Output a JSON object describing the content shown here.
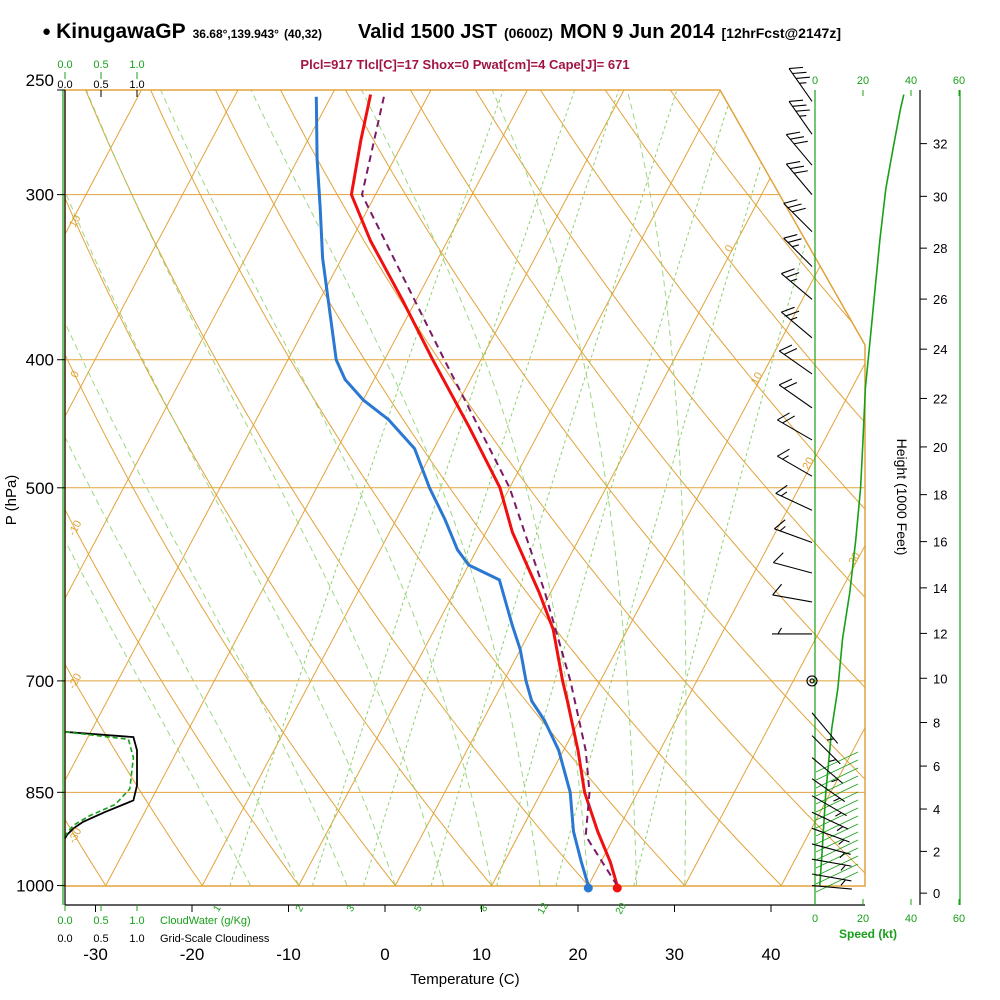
{
  "header": {
    "bullet": "●",
    "station": "KinugawaGP",
    "coords": "36.68°,139.943°",
    "grid_point": "(40,32)",
    "valid_label": "Valid 1500 JST",
    "valid_zulu": "(0600Z)",
    "valid_date": "MON 9 Jun 2014",
    "fcst_tag": "[12hrFcst@2147z]",
    "params_line": "Plcl=917 Tlcl[C]=17 Shox=0 Pwat[cm]=4 Cape[J]= 671",
    "params": {
      "plcl_hpa": 917,
      "tlcl_c": 17,
      "shox": 0,
      "pwat_cm": 4,
      "cape_j": 671
    }
  },
  "colors": {
    "orange": "#e2a33b",
    "green": "#18a018",
    "green_light": "#8ed06e",
    "red": "#f01010",
    "blue": "#2b78d2",
    "purple": "#7a1a66",
    "maroon": "#a01545",
    "black": "#000000"
  },
  "chart_data": {
    "type": "skewt_sounding",
    "axes": {
      "pressure": {
        "label": "P (hPa)",
        "ticks": [
          250,
          300,
          400,
          500,
          700,
          850,
          1000
        ]
      },
      "temperature": {
        "label": "Temperature (C)",
        "ticks": [
          -30,
          -20,
          -10,
          0,
          10,
          20,
          30,
          40
        ]
      },
      "height": {
        "label": "Height (1000 Feet)",
        "ticks": [
          0,
          2,
          4,
          6,
          8,
          10,
          12,
          14,
          16,
          18,
          20,
          22,
          24,
          26,
          28,
          30,
          32
        ]
      },
      "speed": {
        "label": "Speed (kt)",
        "ticks": [
          0,
          20,
          40,
          60
        ]
      },
      "cloudwater": {
        "label": "CloudWater (g/Kg)",
        "ticks": [
          "0.0",
          "0.5",
          "1.0"
        ]
      },
      "cloudiness": {
        "label": "Grid-Scale Cloudiness",
        "ticks": [
          "0.0",
          "0.5",
          "1.0"
        ]
      }
    },
    "isotherm_labels": [
      0,
      10,
      20,
      30
    ],
    "dry_adiabat_labels": [
      10,
      0,
      -10,
      -20,
      -30
    ],
    "mixing_ratio_lines_gkg": [
      1,
      2,
      3,
      5,
      8,
      12,
      20
    ],
    "moist_adiabats_c": [
      -15,
      -10,
      -5,
      0,
      5,
      10,
      15,
      20,
      25,
      30
    ],
    "series": {
      "temperature": [
        [
          1000,
          23
        ],
        [
          960,
          21
        ],
        [
          910,
          18
        ],
        [
          850,
          14.5
        ],
        [
          790,
          11.5
        ],
        [
          725,
          7.7
        ],
        [
          700,
          6.1
        ],
        [
          640,
          2.3
        ],
        [
          600,
          -1.2
        ],
        [
          540,
          -7.3
        ],
        [
          500,
          -11
        ],
        [
          450,
          -17.5
        ],
        [
          400,
          -25
        ],
        [
          360,
          -31.5
        ],
        [
          325,
          -38
        ],
        [
          300,
          -42.5
        ],
        [
          273,
          -44.5
        ],
        [
          252,
          -46
        ]
      ],
      "dewpoint": [
        [
          1000,
          20
        ],
        [
          960,
          18
        ],
        [
          910,
          15.5
        ],
        [
          850,
          13
        ],
        [
          790,
          9.5
        ],
        [
          750,
          6.4
        ],
        [
          725,
          4
        ],
        [
          700,
          2.3
        ],
        [
          663,
          0
        ],
        [
          635,
          -2.2
        ],
        [
          608,
          -4.3
        ],
        [
          587,
          -6
        ],
        [
          572,
          -10
        ],
        [
          557,
          -12
        ],
        [
          528,
          -15
        ],
        [
          500,
          -18.3
        ],
        [
          467,
          -22
        ],
        [
          444,
          -26.3
        ],
        [
          429,
          -30
        ],
        [
          414,
          -33
        ],
        [
          400,
          -35
        ],
        [
          367,
          -38.4
        ],
        [
          335,
          -42
        ],
        [
          307,
          -45
        ],
        [
          282,
          -48
        ],
        [
          253,
          -51.5
        ]
      ],
      "parcel": [
        [
          1000,
          23
        ],
        [
          917,
          17
        ],
        [
          850,
          15
        ],
        [
          790,
          12.3
        ],
        [
          700,
          6.9
        ],
        [
          600,
          -0.6
        ],
        [
          500,
          -10
        ],
        [
          400,
          -23.8
        ],
        [
          300,
          -41.4
        ],
        [
          253,
          -44.5
        ]
      ],
      "wind_speed_kt": [
        [
          1000,
          2
        ],
        [
          940,
          3
        ],
        [
          850,
          4.5
        ],
        [
          760,
          7
        ],
        [
          710,
          9.5
        ],
        [
          650,
          11.5
        ],
        [
          600,
          14.5
        ],
        [
          547,
          17
        ],
        [
          500,
          19
        ],
        [
          460,
          20
        ],
        [
          420,
          21
        ],
        [
          386,
          23
        ],
        [
          354,
          25
        ],
        [
          325,
          27
        ],
        [
          297,
          29.5
        ],
        [
          277,
          32.5
        ],
        [
          259,
          35.5
        ],
        [
          252,
          37
        ]
      ],
      "wind_barbs": [
        [
          255,
          325,
          35
        ],
        [
          270,
          325,
          35
        ],
        [
          285,
          320,
          30
        ],
        [
          300,
          320,
          30
        ],
        [
          320,
          315,
          30
        ],
        [
          340,
          315,
          25
        ],
        [
          360,
          310,
          25
        ],
        [
          385,
          310,
          25
        ],
        [
          410,
          305,
          20
        ],
        [
          435,
          305,
          20
        ],
        [
          460,
          300,
          20
        ],
        [
          490,
          300,
          15
        ],
        [
          520,
          295,
          15
        ],
        [
          550,
          290,
          15
        ],
        [
          580,
          285,
          10
        ],
        [
          610,
          280,
          10
        ],
        [
          645,
          270,
          5
        ],
        [
          700,
          0,
          0
        ],
        [
          740,
          140,
          5
        ],
        [
          770,
          135,
          8
        ],
        [
          800,
          130,
          8
        ],
        [
          830,
          125,
          8
        ],
        [
          855,
          120,
          7
        ],
        [
          880,
          115,
          6
        ],
        [
          905,
          110,
          5
        ],
        [
          930,
          105,
          5
        ],
        [
          955,
          100,
          4
        ],
        [
          980,
          100,
          3
        ],
        [
          1000,
          95,
          2
        ]
      ],
      "cloudiness_profile": [
        [
          765,
          0
        ],
        [
          772,
          0.95
        ],
        [
          790,
          1
        ],
        [
          840,
          1
        ],
        [
          862,
          0.95
        ],
        [
          880,
          0.55
        ],
        [
          895,
          0.25
        ],
        [
          905,
          0.12
        ],
        [
          915,
          0.03
        ],
        [
          921,
          0
        ]
      ],
      "cloudwater_profile": [
        [
          765,
          0
        ],
        [
          775,
          0.88
        ],
        [
          800,
          0.95
        ],
        [
          845,
          0.9
        ],
        [
          868,
          0.7
        ],
        [
          885,
          0.35
        ],
        [
          900,
          0.12
        ],
        [
          912,
          0.03
        ],
        [
          918,
          0
        ]
      ]
    }
  }
}
